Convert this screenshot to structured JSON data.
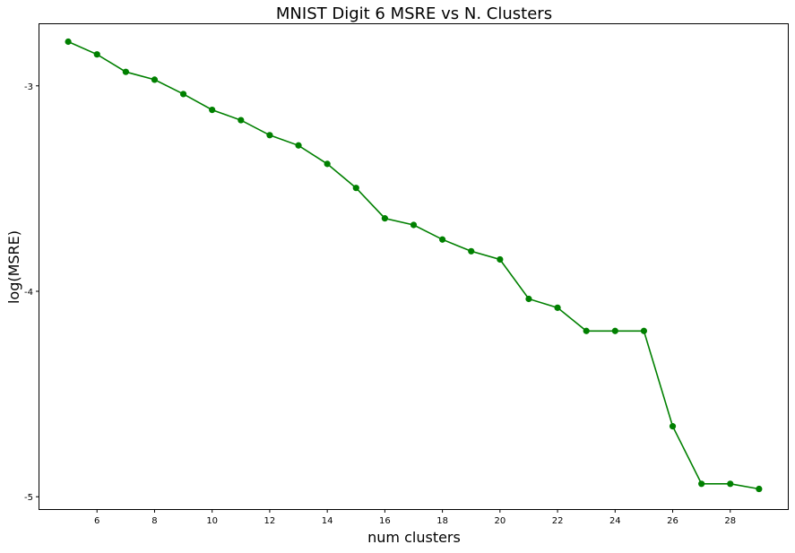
{
  "chart_data": {
    "type": "line",
    "title": "MNIST Digit 6 MSRE vs N. Clusters",
    "xlabel": "num clusters",
    "ylabel": "log(MSRE)",
    "xlim": [
      4.0,
      30.0
    ],
    "ylim": [
      -5.06,
      -2.7
    ],
    "x_ticks": [
      6,
      8,
      10,
      12,
      14,
      16,
      18,
      20,
      22,
      24,
      26,
      28
    ],
    "y_ticks": [
      -3,
      -4,
      -5
    ],
    "grid": false,
    "legend": "none",
    "series": [
      {
        "color": "#008000",
        "marker": "circle",
        "x": [
          5,
          6,
          7,
          8,
          9,
          10,
          11,
          12,
          13,
          14,
          15,
          16,
          17,
          18,
          19,
          20,
          21,
          22,
          23,
          24,
          25,
          26,
          27,
          28,
          29
        ],
        "y": [
          -2.785,
          -2.847,
          -2.932,
          -2.97,
          -3.04,
          -3.117,
          -3.167,
          -3.24,
          -3.29,
          -3.38,
          -3.497,
          -3.645,
          -3.677,
          -3.748,
          -3.805,
          -3.845,
          -4.037,
          -4.08,
          -4.193,
          -4.193,
          -4.193,
          -4.657,
          -4.937,
          -4.937,
          -4.962
        ]
      }
    ]
  }
}
